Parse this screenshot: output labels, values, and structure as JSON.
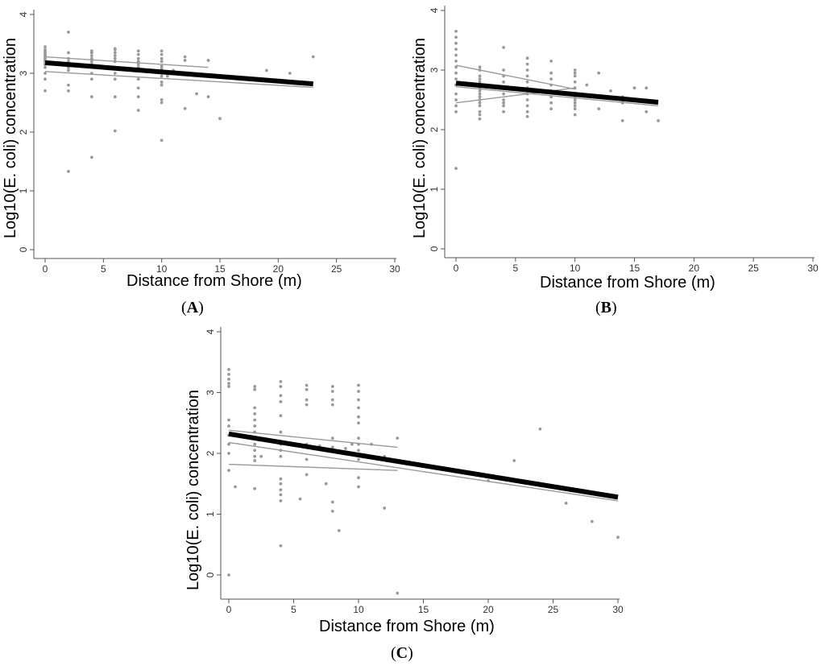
{
  "chart_data": [
    {
      "type": "scatter",
      "panel_label": "A",
      "xlabel": "Distance from Shore (m)",
      "ylabel": "Log10(E. coli) concentration",
      "xlim": [
        0,
        30
      ],
      "ylim": [
        0,
        4
      ],
      "xticks": [
        0,
        5,
        10,
        15,
        20,
        25,
        30
      ],
      "yticks": [
        0,
        1,
        2,
        3,
        4
      ],
      "points": [
        [
          0,
          3.45
        ],
        [
          0,
          3.4
        ],
        [
          0,
          3.38
        ],
        [
          0,
          3.35
        ],
        [
          0,
          3.32
        ],
        [
          0,
          3.3
        ],
        [
          0,
          3.28
        ],
        [
          0,
          3.25
        ],
        [
          0,
          3.22
        ],
        [
          0,
          3.2
        ],
        [
          0,
          3.15
        ],
        [
          0,
          3.1
        ],
        [
          0,
          3.0
        ],
        [
          0,
          2.9
        ],
        [
          0,
          2.7
        ],
        [
          2,
          3.7
        ],
        [
          2,
          3.35
        ],
        [
          2,
          3.25
        ],
        [
          2,
          3.2
        ],
        [
          2,
          3.15
        ],
        [
          2,
          3.1
        ],
        [
          2,
          3.05
        ],
        [
          2,
          2.8
        ],
        [
          2,
          2.7
        ],
        [
          2,
          1.33
        ],
        [
          4,
          3.38
        ],
        [
          4,
          3.35
        ],
        [
          4,
          3.3
        ],
        [
          4,
          3.25
        ],
        [
          4,
          3.2
        ],
        [
          4,
          3.15
        ],
        [
          4,
          3.1
        ],
        [
          4,
          3.0
        ],
        [
          4,
          2.9
        ],
        [
          4,
          2.6
        ],
        [
          4,
          1.57
        ],
        [
          6,
          3.42
        ],
        [
          6,
          3.4
        ],
        [
          6,
          3.35
        ],
        [
          6,
          3.3
        ],
        [
          6,
          3.25
        ],
        [
          6,
          3.2
        ],
        [
          6,
          3.1
        ],
        [
          6,
          3.0
        ],
        [
          6,
          2.9
        ],
        [
          6,
          2.6
        ],
        [
          6,
          2.02
        ],
        [
          8,
          3.38
        ],
        [
          8,
          3.32
        ],
        [
          8,
          3.25
        ],
        [
          8,
          3.2
        ],
        [
          8,
          3.15
        ],
        [
          8,
          3.1
        ],
        [
          8,
          3.05
        ],
        [
          8,
          2.9
        ],
        [
          8,
          2.75
        ],
        [
          8,
          2.6
        ],
        [
          8,
          2.37
        ],
        [
          10,
          3.38
        ],
        [
          10,
          3.32
        ],
        [
          10,
          3.25
        ],
        [
          10,
          3.2
        ],
        [
          10,
          3.12
        ],
        [
          10,
          3.08
        ],
        [
          10,
          3.0
        ],
        [
          10,
          2.95
        ],
        [
          10,
          2.85
        ],
        [
          10,
          2.8
        ],
        [
          10,
          2.55
        ],
        [
          10,
          2.5
        ],
        [
          10,
          1.86
        ],
        [
          10.5,
          2.95
        ],
        [
          11,
          3.05
        ],
        [
          12,
          3.28
        ],
        [
          12,
          3.22
        ],
        [
          12,
          2.4
        ],
        [
          13,
          2.65
        ],
        [
          14,
          3.22
        ],
        [
          14,
          2.6
        ],
        [
          15,
          2.23
        ],
        [
          19,
          3.05
        ],
        [
          21,
          3.0
        ],
        [
          23,
          3.28
        ]
      ],
      "fit": {
        "x": [
          0,
          23
        ],
        "y": [
          3.18,
          2.82
        ]
      },
      "ci_lines": [
        {
          "x": [
            0,
            23
          ],
          "y": [
            3.03,
            2.76
          ]
        },
        {
          "x": [
            0,
            14
          ],
          "y": [
            3.28,
            3.1
          ]
        }
      ]
    },
    {
      "type": "scatter",
      "panel_label": "B",
      "xlabel": "Distance from Shore (m)",
      "ylabel": "Log10(E. coli) concentration",
      "xlim": [
        0,
        30
      ],
      "ylim": [
        0,
        4
      ],
      "xticks": [
        0,
        5,
        10,
        15,
        20,
        25,
        30
      ],
      "yticks": [
        0,
        1,
        2,
        3,
        4
      ],
      "points": [
        [
          0,
          3.65
        ],
        [
          0,
          3.55
        ],
        [
          0,
          3.45
        ],
        [
          0,
          3.35
        ],
        [
          0,
          3.25
        ],
        [
          0,
          3.15
        ],
        [
          0,
          3.05
        ],
        [
          0,
          2.95
        ],
        [
          0,
          2.85
        ],
        [
          0,
          2.75
        ],
        [
          0,
          2.6
        ],
        [
          0,
          2.5
        ],
        [
          0,
          2.4
        ],
        [
          0,
          2.3
        ],
        [
          0,
          1.35
        ],
        [
          2,
          3.05
        ],
        [
          2,
          3.0
        ],
        [
          2,
          2.9
        ],
        [
          2,
          2.85
        ],
        [
          2,
          2.8
        ],
        [
          2,
          2.75
        ],
        [
          2,
          2.7
        ],
        [
          2,
          2.65
        ],
        [
          2,
          2.6
        ],
        [
          2,
          2.55
        ],
        [
          2,
          2.5
        ],
        [
          2,
          2.45
        ],
        [
          2,
          2.4
        ],
        [
          2,
          2.3
        ],
        [
          2,
          2.25
        ],
        [
          2,
          2.18
        ],
        [
          4,
          3.38
        ],
        [
          4,
          3.0
        ],
        [
          4,
          2.9
        ],
        [
          4,
          2.8
        ],
        [
          4,
          2.7
        ],
        [
          4,
          2.6
        ],
        [
          4,
          2.5
        ],
        [
          4,
          2.45
        ],
        [
          4,
          2.4
        ],
        [
          4,
          2.3
        ],
        [
          6,
          3.2
        ],
        [
          6,
          3.1
        ],
        [
          6,
          3.0
        ],
        [
          6,
          2.9
        ],
        [
          6,
          2.8
        ],
        [
          6,
          2.7
        ],
        [
          6,
          2.6
        ],
        [
          6,
          2.5
        ],
        [
          6,
          2.4
        ],
        [
          6,
          2.3
        ],
        [
          6,
          2.22
        ],
        [
          8,
          3.15
        ],
        [
          8,
          2.95
        ],
        [
          8,
          2.85
        ],
        [
          8,
          2.75
        ],
        [
          8,
          2.65
        ],
        [
          8,
          2.55
        ],
        [
          8,
          2.45
        ],
        [
          8,
          2.35
        ],
        [
          10,
          3.0
        ],
        [
          10,
          2.95
        ],
        [
          10,
          2.9
        ],
        [
          10,
          2.8
        ],
        [
          10,
          2.7
        ],
        [
          10,
          2.6
        ],
        [
          10,
          2.55
        ],
        [
          10,
          2.5
        ],
        [
          10,
          2.45
        ],
        [
          10,
          2.4
        ],
        [
          10,
          2.35
        ],
        [
          10,
          2.25
        ],
        [
          11,
          2.75
        ],
        [
          12,
          2.95
        ],
        [
          12,
          2.35
        ],
        [
          13,
          2.65
        ],
        [
          14,
          2.55
        ],
        [
          14,
          2.45
        ],
        [
          14,
          2.15
        ],
        [
          15,
          2.7
        ],
        [
          15,
          2.5
        ],
        [
          16,
          2.7
        ],
        [
          16,
          2.3
        ],
        [
          17,
          2.15
        ]
      ],
      "fit": {
        "x": [
          0,
          17
        ],
        "y": [
          2.78,
          2.46
        ]
      },
      "ci_lines": [
        {
          "x": [
            0,
            17
          ],
          "y": [
            2.72,
            2.4
          ]
        },
        {
          "x": [
            0,
            10
          ],
          "y": [
            3.08,
            2.68
          ]
        },
        {
          "x": [
            0,
            10
          ],
          "y": [
            2.45,
            2.7
          ]
        }
      ]
    },
    {
      "type": "scatter",
      "panel_label": "C",
      "xlabel": "Distance from Shore (m)",
      "ylabel": "Log10(E. coli) concentration",
      "xlim": [
        0,
        30
      ],
      "ylim": [
        0,
        4
      ],
      "xticks": [
        0,
        5,
        10,
        15,
        20,
        25,
        30
      ],
      "yticks": [
        0,
        1,
        2,
        3,
        4
      ],
      "points": [
        [
          0,
          3.38
        ],
        [
          0,
          3.3
        ],
        [
          0,
          3.22
        ],
        [
          0,
          3.15
        ],
        [
          0,
          3.1
        ],
        [
          0,
          2.55
        ],
        [
          0,
          2.45
        ],
        [
          0,
          2.3
        ],
        [
          0,
          2.15
        ],
        [
          0,
          2.0
        ],
        [
          0,
          1.72
        ],
        [
          0,
          0.0
        ],
        [
          0.5,
          1.45
        ],
        [
          2,
          3.1
        ],
        [
          2,
          3.05
        ],
        [
          2,
          2.75
        ],
        [
          2,
          2.65
        ],
        [
          2,
          2.55
        ],
        [
          2,
          2.45
        ],
        [
          2,
          2.35
        ],
        [
          2,
          2.25
        ],
        [
          2,
          2.15
        ],
        [
          2,
          2.05
        ],
        [
          2,
          1.95
        ],
        [
          2,
          1.88
        ],
        [
          2,
          1.42
        ],
        [
          2.5,
          1.95
        ],
        [
          4,
          3.18
        ],
        [
          4,
          3.1
        ],
        [
          4,
          2.95
        ],
        [
          4,
          2.85
        ],
        [
          4,
          2.62
        ],
        [
          4,
          2.35
        ],
        [
          4,
          2.15
        ],
        [
          4,
          2.05
        ],
        [
          4,
          1.95
        ],
        [
          4,
          1.58
        ],
        [
          4,
          1.5
        ],
        [
          4,
          1.4
        ],
        [
          4,
          1.32
        ],
        [
          4,
          1.22
        ],
        [
          4,
          0.48
        ],
        [
          5.5,
          1.25
        ],
        [
          6,
          3.12
        ],
        [
          6,
          3.05
        ],
        [
          6,
          2.88
        ],
        [
          6,
          2.8
        ],
        [
          6,
          2.15
        ],
        [
          6,
          1.9
        ],
        [
          6,
          1.65
        ],
        [
          7,
          2.12
        ],
        [
          7.5,
          1.5
        ],
        [
          8,
          3.1
        ],
        [
          8,
          3.02
        ],
        [
          8,
          2.88
        ],
        [
          8,
          2.8
        ],
        [
          8,
          2.25
        ],
        [
          8,
          2.1
        ],
        [
          8,
          1.2
        ],
        [
          8,
          1.05
        ],
        [
          8.5,
          0.73
        ],
        [
          9,
          2.08
        ],
        [
          9.5,
          2.15
        ],
        [
          10,
          3.12
        ],
        [
          10,
          3.02
        ],
        [
          10,
          2.88
        ],
        [
          10,
          2.75
        ],
        [
          10,
          2.6
        ],
        [
          10,
          2.5
        ],
        [
          10,
          2.25
        ],
        [
          10,
          2.15
        ],
        [
          10,
          2.05
        ],
        [
          10,
          1.9
        ],
        [
          10,
          1.6
        ],
        [
          10,
          1.45
        ],
        [
          11,
          2.15
        ],
        [
          12,
          1.1
        ],
        [
          12,
          1.95
        ],
        [
          13,
          2.25
        ],
        [
          13,
          -0.3
        ],
        [
          20,
          1.55
        ],
        [
          22,
          1.88
        ],
        [
          24,
          2.4
        ],
        [
          26,
          1.18
        ],
        [
          28,
          0.88
        ],
        [
          30,
          0.62
        ]
      ],
      "fit": {
        "x": [
          0,
          30
        ],
        "y": [
          2.32,
          1.28
        ]
      },
      "ci_lines": [
        {
          "x": [
            0,
            30
          ],
          "y": [
            2.18,
            1.22
          ]
        },
        {
          "x": [
            0,
            13
          ],
          "y": [
            2.38,
            2.1
          ]
        },
        {
          "x": [
            0,
            13
          ],
          "y": [
            1.82,
            1.72
          ]
        }
      ]
    }
  ]
}
